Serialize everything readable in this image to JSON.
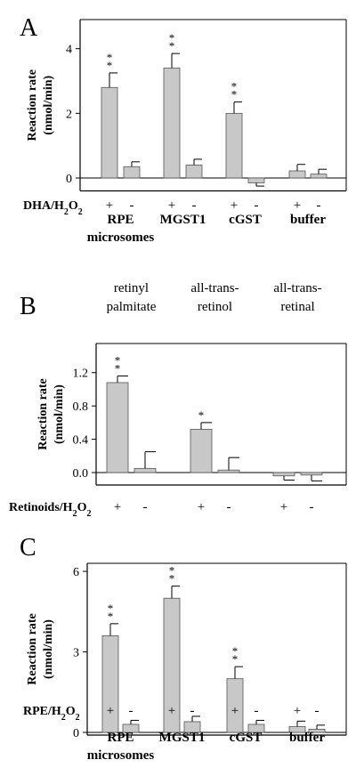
{
  "chart_data": [
    {
      "type": "bar",
      "panel_label": "A",
      "ylabel": "Reaction rate (nmol/min)",
      "ylim": [
        -0.4,
        4.9
      ],
      "yticks": [
        0,
        2,
        4
      ],
      "condition_label": "DHA/H2O2",
      "groups": [
        "RPE microsomes",
        "MGST1",
        "cGST",
        "buffer"
      ],
      "pair_marks": [
        "+",
        "-"
      ],
      "values": [
        2.8,
        0.35,
        3.4,
        0.4,
        2.0,
        -0.15,
        0.22,
        0.12
      ],
      "errors": [
        0.45,
        0.15,
        0.45,
        0.18,
        0.35,
        0.1,
        0.2,
        0.15
      ],
      "significance": [
        "**",
        "",
        "**",
        "",
        "**",
        "",
        "",
        ""
      ]
    },
    {
      "type": "bar",
      "panel_label": "B",
      "ylabel": "Reaction rate (nmol/min)",
      "ylim": [
        -0.15,
        1.55
      ],
      "yticks": [
        0.0,
        0.4,
        0.8,
        1.2
      ],
      "condition_label": "Retinoids/H2O2",
      "groups": [
        "retinyl palmitate",
        "all-trans-retinol",
        "all-trans-retinal"
      ],
      "pair_marks": [
        "+",
        "-"
      ],
      "values": [
        1.08,
        0.05,
        0.52,
        0.03,
        -0.04,
        -0.03
      ],
      "errors": [
        0.08,
        0.2,
        0.08,
        0.15,
        0.05,
        0.07
      ],
      "significance": [
        "**",
        "",
        "*",
        "",
        "",
        ""
      ]
    },
    {
      "type": "bar",
      "panel_label": "C",
      "ylabel": "Reaction rate (nmol/min)",
      "ylim": [
        -0.1,
        6.3
      ],
      "yticks": [
        0,
        3,
        6
      ],
      "condition_label": "RPE/H2O2",
      "groups": [
        "RPE microsomes",
        "MGST1",
        "cGST",
        "buffer"
      ],
      "pair_marks": [
        "+",
        "-"
      ],
      "values": [
        3.6,
        0.3,
        5.0,
        0.4,
        2.0,
        0.3,
        0.22,
        0.12
      ],
      "errors": [
        0.45,
        0.15,
        0.45,
        0.2,
        0.45,
        0.15,
        0.2,
        0.15
      ],
      "significance": [
        "**",
        "",
        "**",
        "",
        "**",
        "",
        "",
        ""
      ]
    }
  ],
  "colors": {
    "bar_fill": "#c8c8c8",
    "axis": "#000000"
  }
}
